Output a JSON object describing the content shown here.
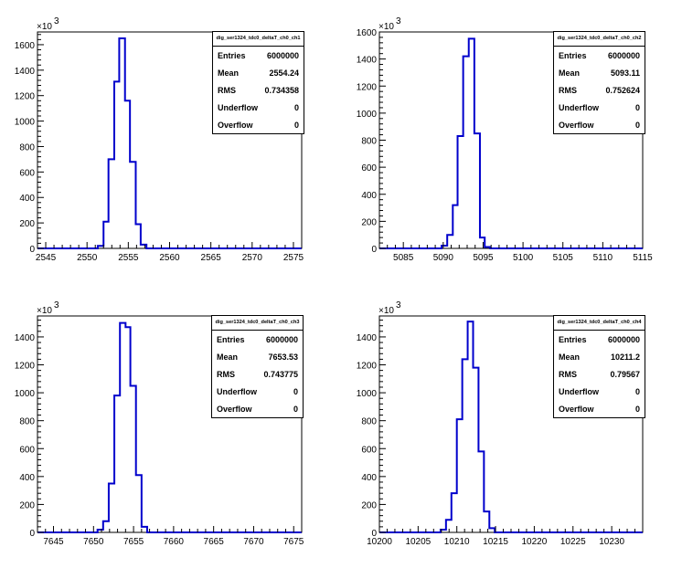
{
  "chart_data": [
    {
      "type": "bar",
      "title": "",
      "multiplier": "×10",
      "multiplier_exp": "3",
      "xlim": [
        2544,
        2576
      ],
      "xticks": [
        2545,
        2550,
        2555,
        2560,
        2565,
        2570,
        2575
      ],
      "ylim": [
        0,
        1700
      ],
      "yticks": [
        0,
        200,
        400,
        600,
        800,
        1000,
        1200,
        1400,
        1600
      ],
      "bins": [
        [
          2551.3,
          2552.0,
          20
        ],
        [
          2552.0,
          2552.6,
          210
        ],
        [
          2552.6,
          2553.3,
          700
        ],
        [
          2553.3,
          2553.9,
          1310
        ],
        [
          2553.9,
          2554.6,
          1650
        ],
        [
          2554.6,
          2555.2,
          1160
        ],
        [
          2555.2,
          2555.9,
          680
        ],
        [
          2555.9,
          2556.5,
          190
        ],
        [
          2556.5,
          2557.2,
          30
        ]
      ],
      "stats": {
        "title": "dig_ser1324_tdc0_deltaT_ch0_ch1",
        "rows": [
          {
            "label": "Entries",
            "value": "6000000"
          },
          {
            "label": "Mean",
            "value": "2554.24"
          },
          {
            "label": "RMS",
            "value": "0.734358"
          },
          {
            "label": "Underflow",
            "value": "0"
          },
          {
            "label": "Overflow",
            "value": "0"
          }
        ]
      }
    },
    {
      "type": "bar",
      "title": "",
      "multiplier": "×10",
      "multiplier_exp": "3",
      "xlim": [
        5082,
        5115
      ],
      "xticks": [
        5085,
        5090,
        5095,
        5100,
        5105,
        5110,
        5115
      ],
      "ylim": [
        0,
        1600
      ],
      "yticks": [
        0,
        200,
        400,
        600,
        800,
        1000,
        1200,
        1400,
        1600
      ],
      "bins": [
        [
          5089.8,
          5090.5,
          20
        ],
        [
          5090.5,
          5091.2,
          100
        ],
        [
          5091.2,
          5091.8,
          320
        ],
        [
          5091.8,
          5092.5,
          830
        ],
        [
          5092.5,
          5093.2,
          1420
        ],
        [
          5093.2,
          5093.9,
          1550
        ],
        [
          5093.9,
          5094.6,
          850
        ],
        [
          5094.6,
          5095.2,
          80
        ],
        [
          5095.2,
          5095.9,
          10
        ]
      ],
      "stats": {
        "title": "dig_ser1324_tdc0_deltaT_ch0_ch2",
        "rows": [
          {
            "label": "Entries",
            "value": "6000000"
          },
          {
            "label": "Mean",
            "value": "5093.11"
          },
          {
            "label": "RMS",
            "value": "0.752624"
          },
          {
            "label": "Underflow",
            "value": "0"
          },
          {
            "label": "Overflow",
            "value": "0"
          }
        ]
      }
    },
    {
      "type": "bar",
      "title": "",
      "multiplier": "×10",
      "multiplier_exp": "3",
      "xlim": [
        7643,
        7676
      ],
      "xticks": [
        7645,
        7650,
        7655,
        7660,
        7665,
        7670,
        7675
      ],
      "ylim": [
        0,
        1550
      ],
      "yticks": [
        0,
        200,
        400,
        600,
        800,
        1000,
        1200,
        1400
      ],
      "bins": [
        [
          7650.5,
          7651.2,
          20
        ],
        [
          7651.2,
          7651.9,
          80
        ],
        [
          7651.9,
          7652.6,
          350
        ],
        [
          7652.6,
          7653.3,
          980
        ],
        [
          7653.3,
          7654.0,
          1500
        ],
        [
          7654.0,
          7654.6,
          1470
        ],
        [
          7654.6,
          7655.3,
          1050
        ],
        [
          7655.3,
          7656.0,
          410
        ],
        [
          7656.0,
          7656.7,
          40
        ]
      ],
      "stats": {
        "title": "dig_ser1324_tdc0_deltaT_ch0_ch3",
        "rows": [
          {
            "label": "Entries",
            "value": "6000000"
          },
          {
            "label": "Mean",
            "value": "7653.53"
          },
          {
            "label": "RMS",
            "value": "0.743775"
          },
          {
            "label": "Underflow",
            "value": "0"
          },
          {
            "label": "Overflow",
            "value": "0"
          }
        ]
      }
    },
    {
      "type": "bar",
      "title": "",
      "multiplier": "×10",
      "multiplier_exp": "3",
      "xlim": [
        10200,
        10234
      ],
      "xticks": [
        10200,
        10205,
        10210,
        10215,
        10220,
        10225,
        10230
      ],
      "ylim": [
        0,
        1550
      ],
      "yticks": [
        0,
        200,
        400,
        600,
        800,
        1000,
        1200,
        1400
      ],
      "bins": [
        [
          10207.9,
          10208.6,
          20
        ],
        [
          10208.6,
          10209.3,
          90
        ],
        [
          10209.3,
          10210.0,
          280
        ],
        [
          10210.0,
          10210.7,
          810
        ],
        [
          10210.7,
          10211.4,
          1240
        ],
        [
          10211.4,
          10212.1,
          1510
        ],
        [
          10212.1,
          10212.8,
          1180
        ],
        [
          10212.8,
          10213.5,
          580
        ],
        [
          10213.5,
          10214.2,
          150
        ],
        [
          10214.2,
          10214.9,
          30
        ]
      ],
      "stats": {
        "title": "dig_ser1324_tdc0_deltaT_ch0_ch4",
        "rows": [
          {
            "label": "Entries",
            "value": "6000000"
          },
          {
            "label": "Mean",
            "value": "10211.2"
          },
          {
            "label": "RMS",
            "value": "0.79567"
          },
          {
            "label": "Underflow",
            "value": "0"
          },
          {
            "label": "Overflow",
            "value": "0"
          }
        ]
      }
    }
  ]
}
